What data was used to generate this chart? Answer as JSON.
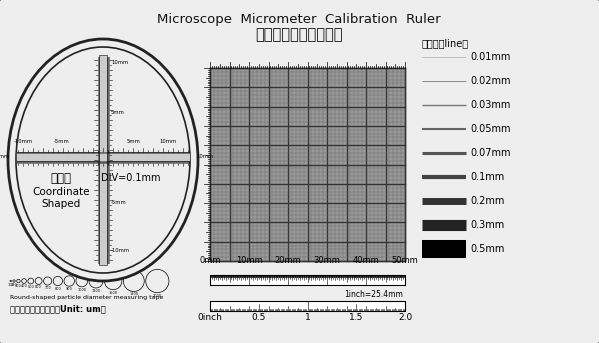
{
  "title_en": "Microscope  Micrometer  Calibration  Ruler",
  "title_zh": "显微镜专用测微校正尺",
  "bg_color": "#eeeeee",
  "line_legend_title": "线宽度（line）",
  "line_widths": [
    0.4,
    0.7,
    1.0,
    1.5,
    2.2,
    3.0,
    5.0,
    8.0,
    13.0
  ],
  "line_labels": [
    "0.01mm",
    "0.02mm",
    "0.03mm",
    "0.05mm",
    "0.07mm",
    "0.1mm",
    "0.2mm",
    "0.3mm",
    "0.5mm"
  ],
  "line_colors": [
    "#999999",
    "#888888",
    "#777777",
    "#666666",
    "#555555",
    "#444444",
    "#333333",
    "#222222",
    "#000000"
  ],
  "grid_bg": "#999999",
  "grid_line_color": "#555555",
  "oval_text1": "坐标型",
  "oval_text2": "Coordinate",
  "oval_text3": "Shaped",
  "oval_text4": "DIV=0.1mm",
  "inch_note": "1inch=25.4mm",
  "bottom_text1": "Round-shaped particle diameter measuring tape",
  "bottom_text2": "圆型颠粒直径测量尺（Unit: um）",
  "mm_labels": [
    "0mm",
    "10mm",
    "20mm",
    "30mm",
    "40mm",
    "50mm"
  ],
  "inch_labels": [
    "0inch",
    "0.5",
    "1",
    "1.5",
    "2.0"
  ]
}
